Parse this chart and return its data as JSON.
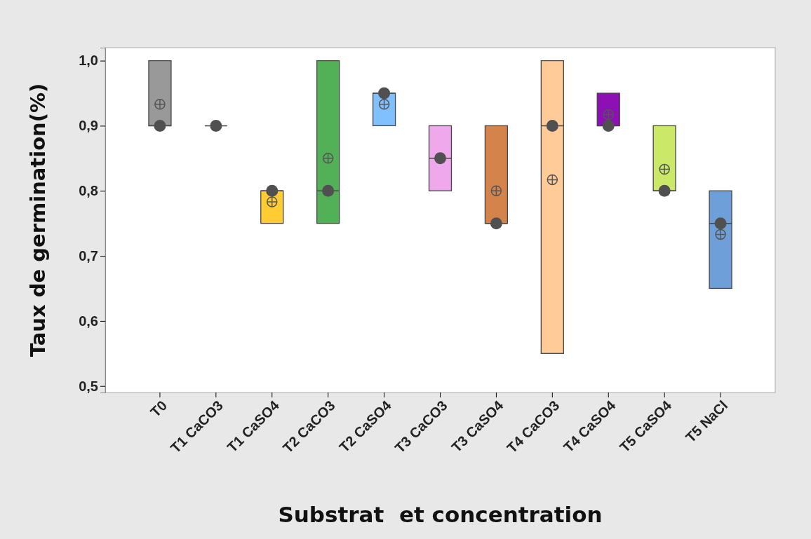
{
  "chart_data": {
    "type": "box",
    "xlabel": "Substrat  et concentration",
    "ylabel": "Taux de germination(%)",
    "categories": [
      "T0",
      "T1 CaCO3",
      "T1 CaSO4",
      "T2 CaCO3",
      "T2 CaSO4",
      "T3 CaCO3",
      "T3 CaSO4",
      "T4 CaCO3",
      "T4 CaSO4",
      "T5 CaSO4",
      "T5 NaCl"
    ],
    "colors": [
      "#999999",
      "#444444",
      "#ffcc33",
      "#52b157",
      "#80c0ff",
      "#f0a8ec",
      "#d4844a",
      "#ffcc99",
      "#8c10b4",
      "#cce868",
      "#6f9fd8"
    ],
    "boxes": [
      {
        "q1": 0.9,
        "median": 0.9,
        "q3": 1.0,
        "mean": 0.933
      },
      {
        "q1": 0.9,
        "median": 0.9,
        "q3": 0.9
      },
      {
        "q1": 0.75,
        "median": 0.8,
        "q3": 0.8,
        "mean": 0.783
      },
      {
        "q1": 0.75,
        "median": 0.8,
        "q3": 1.0,
        "mean": 0.85
      },
      {
        "q1": 0.9,
        "median": 0.95,
        "q3": 0.95,
        "mean": 0.933
      },
      {
        "q1": 0.8,
        "median": 0.85,
        "q3": 0.9
      },
      {
        "q1": 0.75,
        "median": 0.75,
        "q3": 0.9,
        "mean": 0.8
      },
      {
        "q1": 0.55,
        "median": 0.9,
        "q3": 1.0,
        "mean": 0.817
      },
      {
        "q1": 0.9,
        "median": 0.9,
        "q3": 0.95,
        "mean": 0.917
      },
      {
        "q1": 0.8,
        "median": 0.8,
        "q3": 0.9,
        "mean": 0.833
      },
      {
        "q1": 0.65,
        "median": 0.75,
        "q3": 0.8,
        "mean": 0.733
      }
    ],
    "series": [
      {
        "type": "scatter",
        "color": "#505050",
        "x": [
          "T0",
          "T1 CaCO3",
          "T1 CaSO4",
          "T2 CaCO3",
          "T2 CaSO4",
          "T3 CaCO3",
          "T3 CaSO4",
          "T4 CaCO3",
          "T4 CaSO4",
          "T5 CaSO4",
          "T5 NaCl"
        ],
        "values": [
          0.9,
          0.9,
          0.8,
          0.8,
          0.95,
          0.85,
          0.75,
          0.9,
          0.9,
          0.8,
          0.75
        ]
      }
    ],
    "marker": "circle",
    "ylim": [
      0.49,
      1.02
    ],
    "yticks": [
      {
        "value": 0.5,
        "label": "0,5"
      },
      {
        "value": 0.6,
        "label": "0,6"
      },
      {
        "value": 0.7,
        "label": "0,7"
      },
      {
        "value": 0.8,
        "label": "0,8"
      },
      {
        "value": 0.9,
        "label": "0,9"
      },
      {
        "value": 1.0,
        "label": "1,0"
      }
    ],
    "grid": false
  }
}
